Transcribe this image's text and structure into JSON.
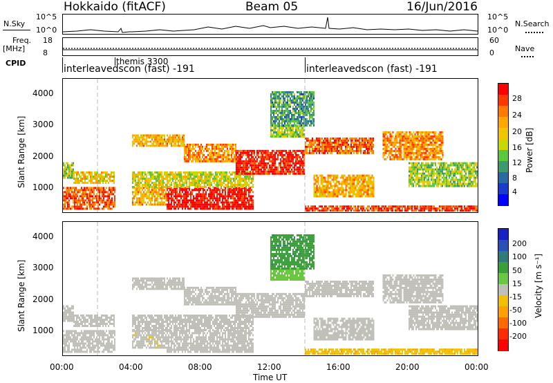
{
  "header": {
    "station": "Hokkaido (fitACF)",
    "beam": "Beam 05",
    "date": "16/Jun/2016"
  },
  "top_panels": {
    "nsky_label": "N.Sky",
    "nsky_ticks": [
      "10^5",
      "10^0"
    ],
    "nsearch_label": "N.Search",
    "nsearch_ticks": [
      "10^5",
      "10^0"
    ],
    "freq_label_line1": "Freq.",
    "freq_label_line2": "[MHz]",
    "freq_ticks": [
      "18",
      "8"
    ],
    "nave_label": "Nave",
    "nave_ticks": [
      "60",
      "0"
    ],
    "cpid_label": "CPID",
    "cpid_entries": [
      {
        "text": "interleavedscon (fast) -191",
        "start_hour": 0
      },
      {
        "text": "themis 3300",
        "start_hour": 3.0
      },
      {
        "text": "interleavedscon (fast) -191",
        "start_hour": 14.0
      }
    ]
  },
  "power_panel": {
    "ylabel": "Slant Range [km]",
    "yticks": [
      "4000",
      "3000",
      "2000",
      "1000"
    ],
    "colorbar_label": "Power [dB]",
    "colorbar_ticks": [
      "28",
      "24",
      "20",
      "16",
      "12",
      "8",
      "4"
    ],
    "colorbar_colors": [
      "#ff0000",
      "#ff3800",
      "#ff7a00",
      "#ffa800",
      "#f5c400",
      "#c8d800",
      "#5ac83c",
      "#3c9a6e",
      "#2a6aa4",
      "#1a3ccc",
      "#0000ff"
    ]
  },
  "velocity_panel": {
    "ylabel": "Slant Range [km]",
    "yticks": [
      "4000",
      "3000",
      "2000",
      "1000"
    ],
    "colorbar_label": "Velocity [m s⁻¹]",
    "colorbar_ticks": [
      "200",
      "100",
      "50",
      "15",
      "-15",
      "-50",
      "-100",
      "-200"
    ],
    "colorbar_colors": [
      "#1a20c8",
      "#2a50b8",
      "#2f7a7a",
      "#39a039",
      "#6ac840",
      "#c0c0b8",
      "#f2c000",
      "#ffa000",
      "#ff6a00",
      "#ff2c00",
      "#ff0000"
    ]
  },
  "x_axis": {
    "ticks": [
      "00:00",
      "04:00",
      "08:00",
      "12:00",
      "16:00",
      "20:00",
      "00:00"
    ],
    "label": "Time UT"
  },
  "chart_data": {
    "type": "heatmap",
    "title": "Hokkaido (fitACF)  Beam 05  16/Jun/2016",
    "xlabel": "Time UT",
    "ylabel": "Slant Range [km]",
    "xlim_hours": [
      0,
      24
    ],
    "ylim_km": [
      180,
      4500
    ],
    "power_scale_db": [
      0,
      30
    ],
    "velocity_scale_ms": [
      -250,
      250
    ],
    "echo_regions": [
      {
        "t0": 0.0,
        "t1": 3.0,
        "r0": 300,
        "r1": 1000,
        "power": 25,
        "velocity": -5
      },
      {
        "t0": 0.0,
        "t1": 0.6,
        "r0": 1300,
        "r1": 1800,
        "power": 14,
        "velocity": 0
      },
      {
        "t0": 0.6,
        "t1": 3.0,
        "r0": 1100,
        "r1": 1500,
        "power": 18,
        "velocity": 5
      },
      {
        "t0": 4.0,
        "t1": 6.0,
        "r0": 400,
        "r1": 1000,
        "power": 20,
        "velocity": -10
      },
      {
        "t0": 6.0,
        "t1": 11.0,
        "r0": 300,
        "r1": 1000,
        "power": 29,
        "velocity": 0
      },
      {
        "t0": 4.0,
        "t1": 11.0,
        "r0": 1000,
        "r1": 1500,
        "power": 16,
        "velocity": 5
      },
      {
        "t0": 4.0,
        "t1": 7.0,
        "r0": 2300,
        "r1": 2700,
        "power": 20,
        "velocity": 0
      },
      {
        "t0": 7.0,
        "t1": 10.0,
        "r0": 1800,
        "r1": 2400,
        "power": 22,
        "velocity": 0
      },
      {
        "t0": 10.0,
        "t1": 14.0,
        "r0": 1400,
        "r1": 2200,
        "power": 28,
        "velocity": 5
      },
      {
        "t0": 14.0,
        "t1": 18.0,
        "r0": 2100,
        "r1": 2600,
        "power": 24,
        "velocity": 0
      },
      {
        "t0": 14.5,
        "t1": 18.0,
        "r0": 700,
        "r1": 1400,
        "power": 20,
        "velocity": -5
      },
      {
        "t0": 12.0,
        "t1": 14.0,
        "r0": 2600,
        "r1": 3000,
        "power": 14,
        "velocity": 40
      },
      {
        "t0": 12.0,
        "t1": 14.5,
        "r0": 3000,
        "r1": 4100,
        "power": 10,
        "velocity": 100
      },
      {
        "t0": 18.5,
        "t1": 22.0,
        "r0": 1900,
        "r1": 2800,
        "power": 22,
        "velocity": 0
      },
      {
        "t0": 20.0,
        "t1": 24.0,
        "r0": 1000,
        "r1": 1800,
        "power": 14,
        "velocity": 0
      },
      {
        "t0": 14.0,
        "t1": 24.0,
        "r0": 200,
        "r1": 400,
        "power": 26,
        "velocity": -60
      }
    ]
  }
}
